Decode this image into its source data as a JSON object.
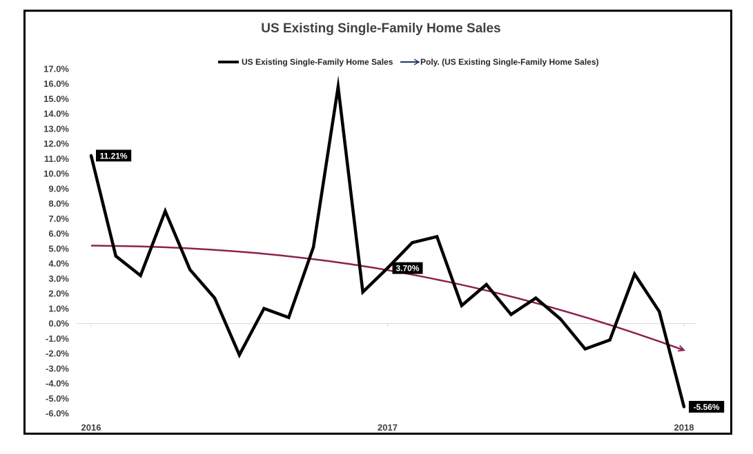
{
  "chart_data": {
    "type": "line",
    "title": "US Existing Single-Family Home Sales",
    "xlabel": "",
    "ylabel": "",
    "x_tick_labels": [
      "2016",
      "2017",
      "2018"
    ],
    "ylim": [
      -6.0,
      17.0
    ],
    "y_tick_step": 1.0,
    "y_tick_format": "percent_1dp",
    "grid": false,
    "legend_position": "top",
    "series": [
      {
        "name": "US Existing Single-Family Home Sales",
        "color": "#000000",
        "values": [
          11.21,
          4.5,
          3.2,
          7.5,
          3.6,
          1.7,
          -2.1,
          1.0,
          0.4,
          5.1,
          15.8,
          2.1,
          3.7,
          5.4,
          5.8,
          1.2,
          2.6,
          0.6,
          1.7,
          0.3,
          -1.7,
          -1.1,
          3.3,
          0.8,
          -5.56
        ]
      }
    ],
    "trendline": {
      "name": "Poly. (US Existing Single-Family Home Sales)",
      "color": "#8B2252",
      "legend_color": "#1F3864",
      "values": [
        5.2,
        5.18,
        5.15,
        5.1,
        5.03,
        4.94,
        4.83,
        4.7,
        4.55,
        4.37,
        4.17,
        3.95,
        3.7,
        3.42,
        3.12,
        2.8,
        2.45,
        2.08,
        1.68,
        1.26,
        0.81,
        0.34,
        -0.16,
        -0.68,
        -1.22,
        -1.78
      ]
    },
    "data_labels": [
      {
        "series": "US Existing Single-Family Home Sales",
        "index": 0,
        "text": "11.21%"
      },
      {
        "series": "US Existing Single-Family Home Sales",
        "index": 12,
        "text": "3.70%"
      },
      {
        "series": "US Existing Single-Family Home Sales",
        "index": 24,
        "text": "-5.56%"
      }
    ]
  }
}
